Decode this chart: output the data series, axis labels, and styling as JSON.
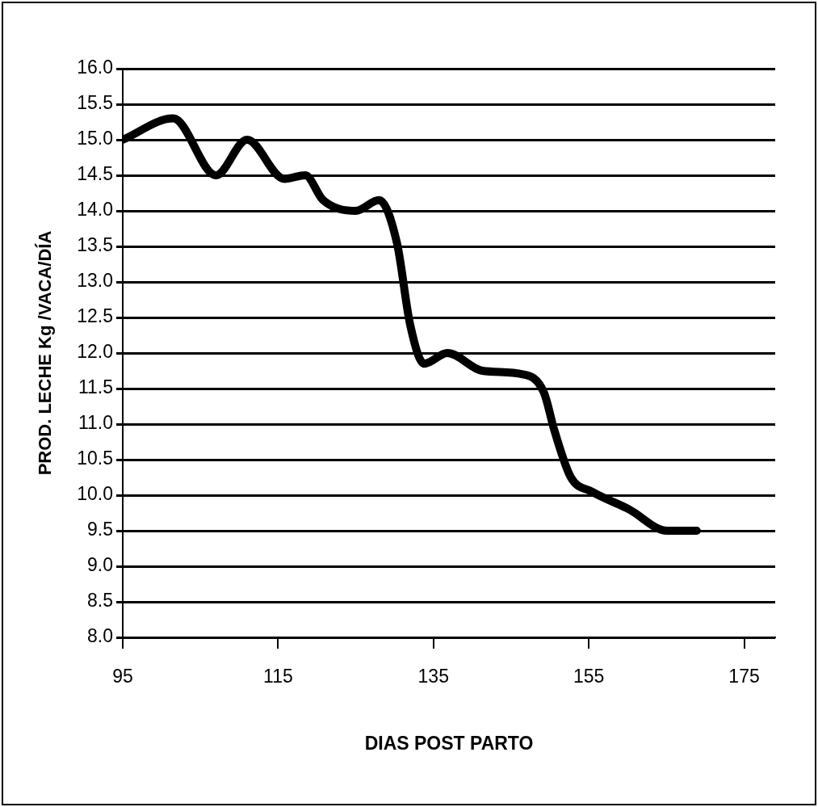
{
  "chart_data": {
    "type": "line",
    "xlabel": "DIAS POST PARTO",
    "ylabel": "PROD. LECHE Kg /VACA/DÍA",
    "x": [
      95,
      101.5,
      107,
      111,
      115.8,
      118.5,
      120.8,
      125,
      128,
      130.3,
      132,
      133.8,
      136.8,
      141.3,
      146.5,
      149.2,
      150.6,
      152.7,
      155.4,
      160.2,
      165.1,
      168.9
    ],
    "series": [
      {
        "color": "#000000",
        "values": [
          15.0,
          15.3,
          14.5,
          15.0,
          14.45,
          14.5,
          14.15,
          14.0,
          14.15,
          13.55,
          12.4,
          11.85,
          12.0,
          11.75,
          11.7,
          11.45,
          10.9,
          10.25,
          10.05,
          9.8,
          9.5,
          9.5
        ]
      }
    ],
    "xlim": [
      95,
      179
    ],
    "xticks": [
      95,
      115,
      135,
      155,
      175
    ],
    "ylim": [
      8,
      16
    ],
    "yticks": [
      {
        "value": 8,
        "label": "8.0"
      },
      {
        "value": 8.5,
        "label": "8.5"
      },
      {
        "value": 9,
        "label": "9.0"
      },
      {
        "value": 9.5,
        "label": "9.5"
      },
      {
        "value": 10,
        "label": "10.0"
      },
      {
        "value": 10.5,
        "label": "10.5"
      },
      {
        "value": 11,
        "label": "11.0"
      },
      {
        "value": 11.5,
        "label": "11.5"
      },
      {
        "value": 12,
        "label": "12.0"
      },
      {
        "value": 12.5,
        "label": "12.5"
      },
      {
        "value": 13,
        "label": "13.0"
      },
      {
        "value": 13.5,
        "label": "13.5"
      },
      {
        "value": 14,
        "label": "14.0"
      },
      {
        "value": 14.5,
        "label": "14.5"
      },
      {
        "value": 15,
        "label": "15.0"
      },
      {
        "value": 15.5,
        "label": "15.5"
      },
      {
        "value": 16,
        "label": "16.0"
      }
    ],
    "grid": "y",
    "legend": false,
    "marker": "none",
    "line_style": "solid"
  }
}
